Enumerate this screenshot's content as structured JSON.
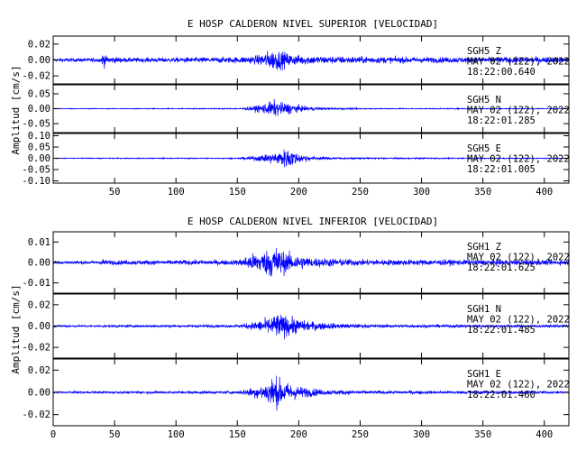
{
  "chart_data": [
    {
      "type": "line",
      "title": "E HOSP CALDERON NIVEL SUPERIOR [VELOCIDAD]",
      "ylabel": "Amplitud [cm/s]",
      "xlabel": "",
      "xlim": [
        0,
        420
      ],
      "x_ticks": [
        50,
        100,
        150,
        200,
        250,
        300,
        350,
        400
      ],
      "x_tick_labels": [
        "50",
        "100",
        "150",
        "200",
        "250",
        "300",
        "350",
        "400"
      ],
      "grid": false,
      "trace_color": "#0000ff",
      "panels": [
        {
          "name": "SGH5 Z",
          "ylim": [
            -0.03,
            0.03
          ],
          "y_ticks": [
            -0.02,
            0,
            0.02
          ],
          "y_tick_labels": [
            "-0.02",
            "0.00",
            "0.02"
          ],
          "annotation": [
            "SGH5   Z",
            "MAY 02 (122), 2022",
            "18:22:00.640"
          ],
          "envelope": [
            [
              0,
              0.0035
            ],
            [
              20,
              0.004
            ],
            [
              39,
              0.0045
            ],
            [
              41,
              0.018
            ],
            [
              43,
              0.008
            ],
            [
              60,
              0.0045
            ],
            [
              100,
              0.005
            ],
            [
              150,
              0.0065
            ],
            [
              165,
              0.009
            ],
            [
              175,
              0.018
            ],
            [
              182,
              0.022
            ],
            [
              195,
              0.011
            ],
            [
              220,
              0.008
            ],
            [
              300,
              0.006
            ],
            [
              420,
              0.006
            ]
          ]
        },
        {
          "name": "SGH5 N",
          "ylim": [
            -0.08,
            0.08
          ],
          "y_ticks": [
            -0.05,
            0,
            0.05
          ],
          "y_tick_labels": [
            "-0.05",
            "0.00",
            "0.05"
          ],
          "annotation": [
            "SGH5   N",
            "MAY 02 (122), 2022",
            "18:22:01.285"
          ],
          "envelope": [
            [
              0,
              0.002
            ],
            [
              150,
              0.003
            ],
            [
              162,
              0.012
            ],
            [
              170,
              0.025
            ],
            [
              180,
              0.045
            ],
            [
              186,
              0.035
            ],
            [
              195,
              0.028
            ],
            [
              205,
              0.012
            ],
            [
              230,
              0.005
            ],
            [
              260,
              0.003
            ],
            [
              420,
              0.002
            ]
          ]
        },
        {
          "name": "SGH5 E",
          "ylim": [
            -0.11,
            0.11
          ],
          "y_ticks": [
            -0.1,
            -0.05,
            0,
            0.05,
            0.1
          ],
          "y_tick_labels": [
            "-0.10",
            "-0.05",
            "0.00",
            "0.05",
            "0.10"
          ],
          "annotation": [
            "SGH5   E",
            "MAY 02 (122), 2022",
            "18:22:01.005"
          ],
          "envelope": [
            [
              0,
              0.003
            ],
            [
              150,
              0.004
            ],
            [
              162,
              0.015
            ],
            [
              175,
              0.03
            ],
            [
              185,
              0.055
            ],
            [
              192,
              0.08
            ],
            [
              198,
              0.04
            ],
            [
              210,
              0.015
            ],
            [
              240,
              0.006
            ],
            [
              420,
              0.003
            ]
          ]
        }
      ]
    },
    {
      "type": "line",
      "title": "E HOSP CALDERON NIVEL INFERIOR [VELOCIDAD]",
      "ylabel": "Amplitud [cm/s]",
      "xlabel": "",
      "xlim": [
        0,
        420
      ],
      "x_ticks": [
        0,
        50,
        100,
        150,
        200,
        250,
        300,
        350,
        400
      ],
      "x_tick_labels": [
        "0",
        "50",
        "100",
        "150",
        "200",
        "250",
        "300",
        "350",
        "400"
      ],
      "grid": false,
      "trace_color": "#0000ff",
      "panels": [
        {
          "name": "SGH1 Z",
          "ylim": [
            -0.015,
            0.015
          ],
          "y_ticks": [
            -0.01,
            0,
            0.01
          ],
          "y_tick_labels": [
            "-0.01",
            "0.00",
            "0.01"
          ],
          "annotation": [
            "SGH1   Z",
            "MAY 02 (122), 2022",
            "18:22:01.625"
          ],
          "envelope": [
            [
              0,
              0.0012
            ],
            [
              39,
              0.0015
            ],
            [
              41,
              0.004
            ],
            [
              43,
              0.0018
            ],
            [
              150,
              0.002
            ],
            [
              162,
              0.007
            ],
            [
              172,
              0.009
            ],
            [
              180,
              0.014
            ],
            [
              190,
              0.008
            ],
            [
              210,
              0.004
            ],
            [
              250,
              0.0025
            ],
            [
              420,
              0.002
            ]
          ]
        },
        {
          "name": "SGH1 N",
          "ylim": [
            -0.03,
            0.03
          ],
          "y_ticks": [
            -0.02,
            0,
            0.02
          ],
          "y_tick_labels": [
            "-0.02",
            "0.00",
            "0.02"
          ],
          "annotation": [
            "SGH1   N",
            "MAY 02 (122), 2022",
            "18:22:01.485"
          ],
          "envelope": [
            [
              0,
              0.0015
            ],
            [
              150,
              0.002
            ],
            [
              162,
              0.006
            ],
            [
              175,
              0.012
            ],
            [
              182,
              0.02
            ],
            [
              192,
              0.015
            ],
            [
              205,
              0.008
            ],
            [
              230,
              0.004
            ],
            [
              260,
              0.0025
            ],
            [
              420,
              0.002
            ]
          ]
        },
        {
          "name": "SGH1 E",
          "ylim": [
            -0.03,
            0.03
          ],
          "y_ticks": [
            -0.02,
            0,
            0.02
          ],
          "y_tick_labels": [
            "-0.02",
            "0.00",
            "0.02"
          ],
          "annotation": [
            "SGH1   E",
            "MAY 02 (122), 2022",
            "18:22:01.460"
          ],
          "envelope": [
            [
              0,
              0.0015
            ],
            [
              150,
              0.002
            ],
            [
              162,
              0.007
            ],
            [
              172,
              0.012
            ],
            [
              180,
              0.025
            ],
            [
              188,
              0.016
            ],
            [
              200,
              0.009
            ],
            [
              220,
              0.004
            ],
            [
              260,
              0.0025
            ],
            [
              420,
              0.002
            ]
          ]
        }
      ]
    }
  ]
}
